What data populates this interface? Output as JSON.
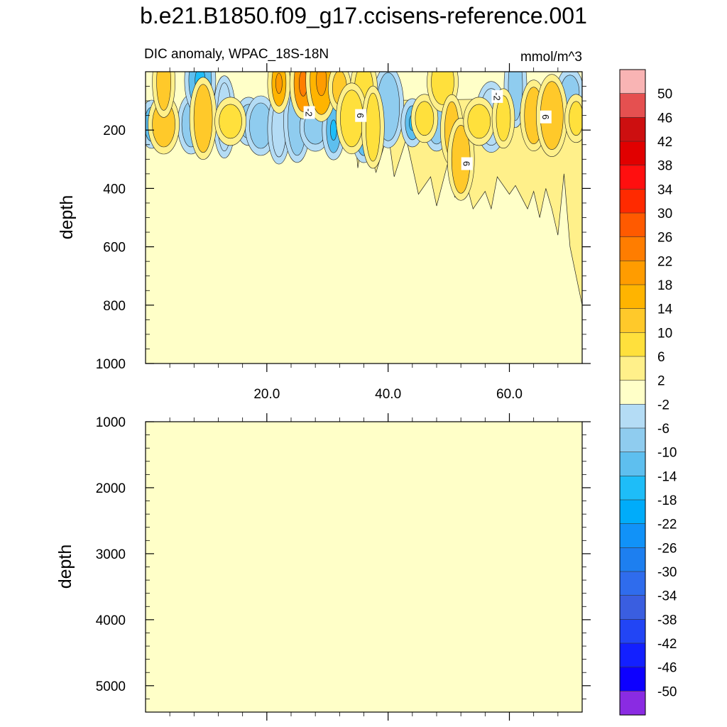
{
  "chart_data": [
    {
      "type": "heatmap",
      "panel": "upper",
      "title": "b.e21.B1850.f09_g17.ccisens-reference.001",
      "left_subtitle": "DIC anomaly, WPAC_18S-18N",
      "right_subtitle": "mmol/m^3",
      "ylabel": "depth",
      "xlabel": "",
      "xlim": [
        0,
        72
      ],
      "ylim": [
        1000,
        0
      ],
      "x_ticks": [
        20,
        40,
        60
      ],
      "x_tick_labels": [
        "20.0",
        "40.0",
        "60.0"
      ],
      "y_ticks": [
        200,
        400,
        600,
        800,
        1000
      ],
      "y_tick_labels": [
        "200",
        "400",
        "600",
        "800",
        "1000"
      ],
      "contour_labels": [
        {
          "text": "-2",
          "x": 27,
          "y": 140
        },
        {
          "text": "6",
          "x": 35.5,
          "y": 150
        },
        {
          "text": "-2",
          "x": 58,
          "y": 85
        },
        {
          "text": "6",
          "x": 53,
          "y": 315
        },
        {
          "text": "6",
          "x": 66,
          "y": 155
        }
      ],
      "features": [
        {
          "x": 1,
          "y": 180,
          "v": -14
        },
        {
          "x": 7.5,
          "y": 180,
          "v": -10
        },
        {
          "x": 9,
          "y": 30,
          "v": -14
        },
        {
          "x": 13,
          "y": 155,
          "v": -6
        },
        {
          "x": 17,
          "y": 170,
          "v": -10
        },
        {
          "x": 19,
          "y": 185,
          "v": -10
        },
        {
          "x": 22,
          "y": 195,
          "v": -6
        },
        {
          "x": 25,
          "y": 170,
          "v": -10
        },
        {
          "x": 28,
          "y": 190,
          "v": -10
        },
        {
          "x": 31,
          "y": 200,
          "v": -14
        },
        {
          "x": 36,
          "y": 190,
          "v": -14
        },
        {
          "x": 40,
          "y": 120,
          "v": -10
        },
        {
          "x": 44,
          "y": 175,
          "v": -14
        },
        {
          "x": 48,
          "y": 170,
          "v": -10
        },
        {
          "x": 57,
          "y": 155,
          "v": -6
        },
        {
          "x": 61,
          "y": 50,
          "v": -10
        },
        {
          "x": 70,
          "y": 70,
          "v": -10
        },
        {
          "x": 3,
          "y": 180,
          "v": 10
        },
        {
          "x": 3,
          "y": 35,
          "v": 10
        },
        {
          "x": 9.5,
          "y": 160,
          "v": 10
        },
        {
          "x": 14,
          "y": 170,
          "v": 6
        },
        {
          "x": 22,
          "y": 40,
          "v": 14
        },
        {
          "x": 26,
          "y": 40,
          "v": 18
        },
        {
          "x": 29,
          "y": 30,
          "v": 14
        },
        {
          "x": 32,
          "y": 55,
          "v": 10
        },
        {
          "x": 36,
          "y": 55,
          "v": 6
        },
        {
          "x": 34,
          "y": 160,
          "v": 6
        },
        {
          "x": 37.5,
          "y": 190,
          "v": 6
        },
        {
          "x": 46,
          "y": 160,
          "v": 6
        },
        {
          "x": 49,
          "y": 35,
          "v": 6
        },
        {
          "x": 50.5,
          "y": 200,
          "v": 10
        },
        {
          "x": 52,
          "y": 300,
          "v": 10
        },
        {
          "x": 55,
          "y": 170,
          "v": 6
        },
        {
          "x": 59,
          "y": 160,
          "v": 6
        },
        {
          "x": 64,
          "y": 150,
          "v": 10
        },
        {
          "x": 67,
          "y": 150,
          "v": 10
        },
        {
          "x": 71,
          "y": 160,
          "v": 6
        }
      ]
    },
    {
      "type": "heatmap",
      "panel": "lower",
      "ylabel": "depth",
      "xlim": [
        0,
        72
      ],
      "ylim": [
        5400,
        1000
      ],
      "y_ticks": [
        1000,
        2000,
        3000,
        4000,
        5000
      ],
      "y_tick_labels": [
        "1000",
        "2000",
        "3000",
        "4000",
        "5000"
      ],
      "x_ticks": [
        20,
        40,
        60
      ],
      "fill_value": 0
    },
    {
      "type": "colorbar",
      "levels": [
        50,
        46,
        42,
        38,
        34,
        30,
        26,
        22,
        18,
        14,
        10,
        6,
        2,
        -2,
        -6,
        -10,
        -14,
        -18,
        -22,
        -26,
        -30,
        -34,
        -38,
        -42,
        -46,
        -50
      ],
      "level_labels": [
        "50",
        "46",
        "42",
        "38",
        "34",
        "30",
        "26",
        "22",
        "18",
        "14",
        "10",
        "6",
        "2",
        "-2",
        "-6",
        "-10",
        "-14",
        "-18",
        "-22",
        "-26",
        "-30",
        "-34",
        "-38",
        "-42",
        "-46",
        "-50"
      ],
      "colors": [
        "#f9b4b4",
        "#e55050",
        "#cd0f10",
        "#e10000",
        "#ff0f0f",
        "#ff2a00",
        "#ff5a00",
        "#ff7d00",
        "#ff9c00",
        "#ffb400",
        "#ffc92a",
        "#ffe03c",
        "#fff08a",
        "#ffffc8",
        "#b4dcf5",
        "#8fccef",
        "#5ebfef",
        "#1ebdf8",
        "#00acfa",
        "#1192f8",
        "#1d7ff0",
        "#2f6ced",
        "#3a5ee0",
        "#2245f5",
        "#1320ff",
        "#0d00ff",
        "#8a2be2"
      ]
    }
  ]
}
